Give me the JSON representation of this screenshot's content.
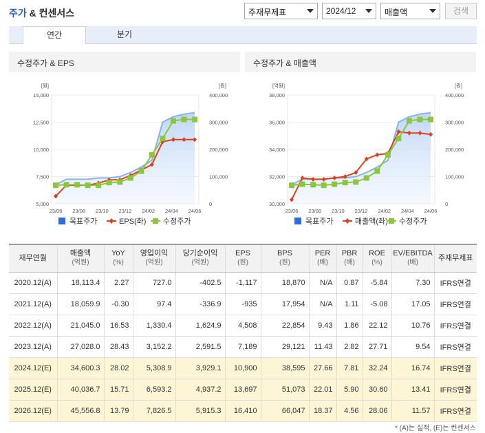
{
  "header": {
    "title_main": "주가",
    "title_rest": " & 컨센서스",
    "select_basis": "주재무제표",
    "select_period": "2024/12",
    "select_metric": "매출액",
    "search_label": "검색"
  },
  "tabs": [
    {
      "label": "연간"
    },
    {
      "label": "분기"
    }
  ],
  "charts": [
    {
      "panel_title": "수정주가 & EPS",
      "left_unit": "[원]",
      "right_unit": "[원]",
      "left_ticks": [
        "15,000",
        "12,500",
        "10,000",
        "7,500",
        "5,000"
      ],
      "right_ticks": [
        "400,000",
        "300,000",
        "200,000",
        "100,000",
        "0"
      ],
      "x_ticks": [
        "23/06",
        "23/08",
        "23/10",
        "23/12",
        "24/02",
        "24/04",
        "24/06"
      ],
      "legend": [
        "목표주가",
        "EPS(좌)",
        "수정주가"
      ]
    },
    {
      "panel_title": "수정주가 & 매출액",
      "left_unit": "[억원]",
      "right_unit": "[원]",
      "left_ticks": [
        "38,000",
        "36,000",
        "34,000",
        "32,000",
        "30,000"
      ],
      "right_ticks": [
        "400,000",
        "300,000",
        "200,000",
        "100,000",
        "0"
      ],
      "x_ticks": [
        "23/06",
        "23/08",
        "23/10",
        "23/12",
        "24/02",
        "24/04",
        "24/06"
      ],
      "legend": [
        "목표주가",
        "매출액(좌)",
        "수정주가"
      ]
    }
  ],
  "chart_data": [
    {
      "type": "line",
      "x": [
        "23/06",
        "23/07",
        "23/08",
        "23/09",
        "23/10",
        "23/11",
        "23/12",
        "24/01",
        "24/02",
        "24/03",
        "24/04",
        "24/05",
        "24/06",
        "24/07"
      ],
      "ylim_left": [
        5000,
        15000
      ],
      "ylim_right": [
        0,
        400000
      ],
      "series": [
        {
          "name": "목표주가",
          "axis": "right",
          "color": "#2a6fdb",
          "style": "area",
          "values": [
            70000,
            90000,
            90000,
            90000,
            95000,
            95000,
            100000,
            115000,
            135000,
            160000,
            300000,
            320000,
            330000,
            335000
          ]
        },
        {
          "name": "EPS(좌)",
          "axis": "left",
          "color": "#d9421f",
          "marker": "diamond",
          "values": [
            5700,
            6700,
            6700,
            6700,
            6900,
            7200,
            7200,
            7600,
            8100,
            8600,
            10700,
            10900,
            10900,
            10900
          ]
        },
        {
          "name": "수정주가",
          "axis": "right",
          "color": "#8cc63f",
          "marker": "square",
          "values": [
            68000,
            70000,
            70000,
            68000,
            68000,
            78000,
            80000,
            95000,
            120000,
            180000,
            240000,
            305000,
            310000,
            310000
          ]
        }
      ]
    },
    {
      "type": "line",
      "x": [
        "23/06",
        "23/07",
        "23/08",
        "23/09",
        "23/10",
        "23/11",
        "23/12",
        "24/01",
        "24/02",
        "24/03",
        "24/04",
        "24/05",
        "24/06",
        "24/07"
      ],
      "ylim_left": [
        30000,
        38000
      ],
      "ylim_right": [
        0,
        400000
      ],
      "series": [
        {
          "name": "목표주가",
          "axis": "right",
          "color": "#2a6fdb",
          "style": "area",
          "values": [
            70000,
            90000,
            90000,
            90000,
            95000,
            95000,
            100000,
            115000,
            135000,
            160000,
            300000,
            320000,
            330000,
            335000
          ]
        },
        {
          "name": "매출액(좌)",
          "axis": "left",
          "color": "#d9421f",
          "marker": "diamond",
          "values": [
            30300,
            31900,
            31800,
            31800,
            31900,
            32000,
            32300,
            33300,
            33600,
            33700,
            35300,
            35200,
            35200,
            35100
          ]
        },
        {
          "name": "수정주가",
          "axis": "right",
          "color": "#8cc63f",
          "marker": "square",
          "values": [
            68000,
            72000,
            70000,
            68000,
            72000,
            78000,
            80000,
            95000,
            120000,
            180000,
            240000,
            305000,
            310000,
            310000
          ]
        }
      ]
    }
  ],
  "table": {
    "headers": [
      {
        "main": "재무연월",
        "sub": ""
      },
      {
        "main": "매출액",
        "sub": "(억원)"
      },
      {
        "main": "YoY",
        "sub": "(%)"
      },
      {
        "main": "영업이익",
        "sub": "(억원)"
      },
      {
        "main": "당기순이익",
        "sub": "(억원)"
      },
      {
        "main": "EPS",
        "sub": "(원)"
      },
      {
        "main": "BPS",
        "sub": "(원)"
      },
      {
        "main": "PER",
        "sub": "(배)"
      },
      {
        "main": "PBR",
        "sub": "(배)"
      },
      {
        "main": "ROE",
        "sub": "(%)"
      },
      {
        "main": "EV/EBITDA",
        "sub": "(배)"
      },
      {
        "main": "주재무제표",
        "sub": ""
      }
    ],
    "rows": [
      {
        "estimate": false,
        "cells": [
          "2020.12(A)",
          "18,113.4",
          "2.27",
          "727.0",
          "-402.5",
          "-1,117",
          "18,870",
          "N/A",
          "0.87",
          "-5.84",
          "7.30",
          "IFRS연결"
        ]
      },
      {
        "estimate": false,
        "cells": [
          "2021.12(A)",
          "18,059.9",
          "-0.30",
          "97.4",
          "-336.9",
          "-935",
          "17,954",
          "N/A",
          "1.11",
          "-5.08",
          "17.05",
          "IFRS연결"
        ]
      },
      {
        "estimate": false,
        "cells": [
          "2022.12(A)",
          "21,045.0",
          "16.53",
          "1,330.4",
          "1,624.9",
          "4,508",
          "22,854",
          "9.43",
          "1.86",
          "22.12",
          "10.76",
          "IFRS연결"
        ]
      },
      {
        "estimate": false,
        "cells": [
          "2023.12(A)",
          "27,028.0",
          "28.43",
          "3,152.2",
          "2,591.5",
          "7,189",
          "29,121",
          "11.43",
          "2.82",
          "27.71",
          "9.54",
          "IFRS연결"
        ]
      },
      {
        "estimate": true,
        "cells": [
          "2024.12(E)",
          "34,600.3",
          "28.02",
          "5,308.9",
          "3,929.1",
          "10,900",
          "38,595",
          "27.66",
          "7.81",
          "32.24",
          "16.74",
          "IFRS연결"
        ]
      },
      {
        "estimate": true,
        "cells": [
          "2025.12(E)",
          "40,036.7",
          "15.71",
          "6,593.2",
          "4,937.2",
          "13,697",
          "51,073",
          "22.01",
          "5.90",
          "30.60",
          "13.41",
          "IFRS연결"
        ]
      },
      {
        "estimate": true,
        "cells": [
          "2026.12(E)",
          "45,556.8",
          "13.79",
          "7,826.5",
          "5,915.3",
          "16,410",
          "66,047",
          "18.37",
          "4.56",
          "28.06",
          "11.57",
          "IFRS연결"
        ]
      }
    ]
  },
  "footnote": "* (A)는 실적, (E)는 컨센서스"
}
